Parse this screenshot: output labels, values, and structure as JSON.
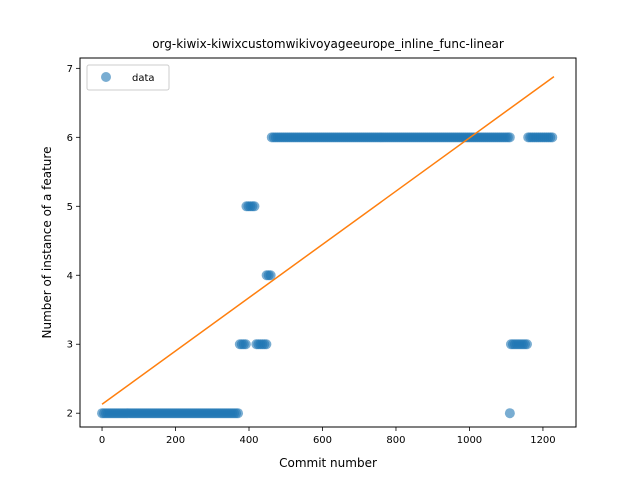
{
  "chart_data": {
    "type": "scatter",
    "title": "org-kiwix-kiwixcustomwikivoyageeurope_inline_func-linear",
    "xlabel": "Commit number",
    "ylabel": "Number of instance of a feature",
    "xlim": [
      -60,
      1290
    ],
    "ylim": [
      1.8,
      7.15
    ],
    "xticks": [
      0,
      200,
      400,
      600,
      800,
      1000,
      1200
    ],
    "yticks": [
      2,
      3,
      4,
      5,
      6,
      7
    ],
    "grid": false,
    "legend": {
      "position": "top-left",
      "entries": [
        "data"
      ]
    },
    "colors": {
      "points": "#1f77b4",
      "fit": "#ff7f0e"
    },
    "series": [
      {
        "name": "data",
        "kind": "scatter",
        "segments": [
          {
            "x_start": 0,
            "x_end": 375,
            "y": 2
          },
          {
            "x_start": 375,
            "x_end": 393,
            "y": 3
          },
          {
            "x_start": 393,
            "x_end": 420,
            "y": 5
          },
          {
            "x_start": 420,
            "x_end": 448,
            "y": 3
          },
          {
            "x_start": 448,
            "x_end": 462,
            "y": 4
          },
          {
            "x_start": 462,
            "x_end": 1110,
            "y": 6
          },
          {
            "x_start": 1110,
            "x_end": 1113,
            "y": 2
          },
          {
            "x_start": 1113,
            "x_end": 1160,
            "y": 3
          },
          {
            "x_start": 1160,
            "x_end": 1230,
            "y": 6
          }
        ]
      },
      {
        "kind": "line",
        "points": [
          [
            0,
            2.13
          ],
          [
            1230,
            6.88
          ]
        ]
      }
    ]
  }
}
